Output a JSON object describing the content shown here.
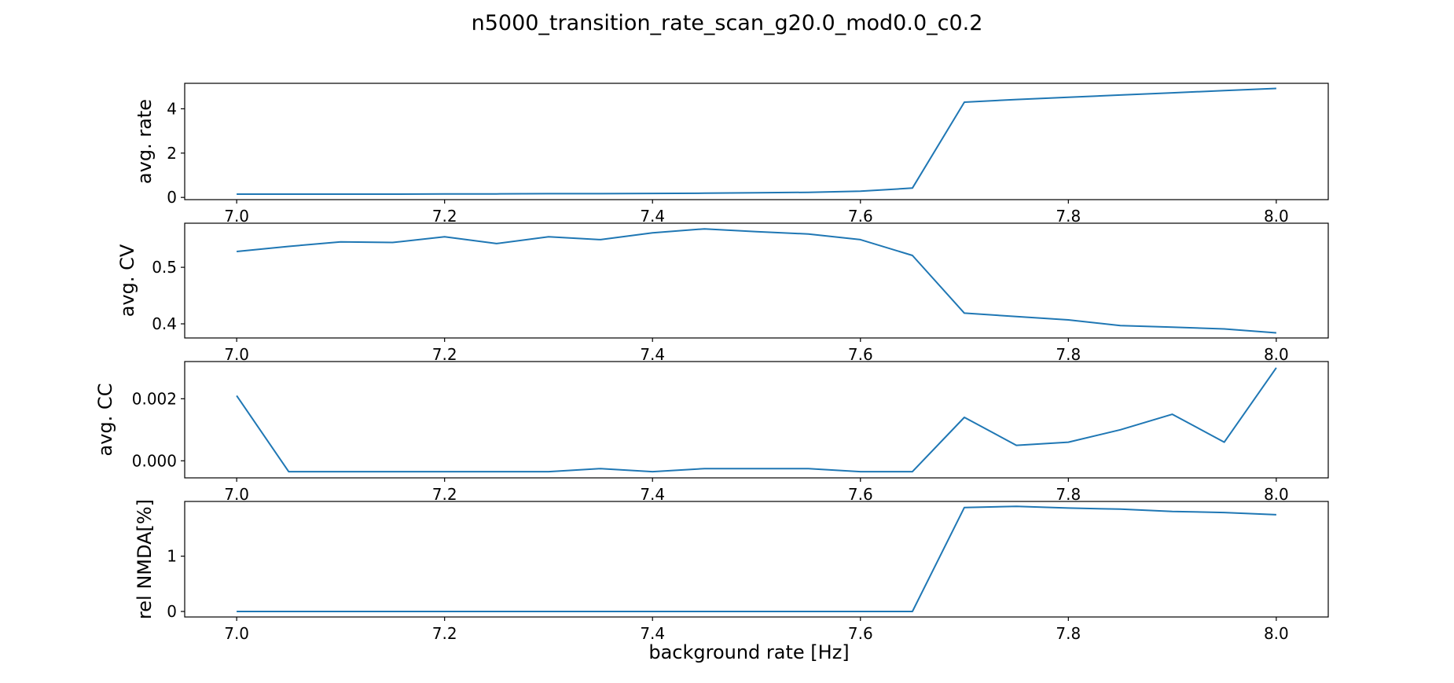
{
  "figure": {
    "title": "n5000_transition_rate_scan_g20.0_mod0.0_c0.2",
    "xlabel": "background rate [Hz]",
    "line_color": "#1f77b4"
  },
  "chart_data": [
    {
      "type": "line",
      "ylabel": "avg. rate",
      "x": [
        7.0,
        7.05,
        7.1,
        7.15,
        7.2,
        7.25,
        7.3,
        7.35,
        7.4,
        7.45,
        7.5,
        7.55,
        7.6,
        7.65,
        7.7,
        7.75,
        7.8,
        7.85,
        7.9,
        7.95,
        8.0
      ],
      "values": [
        0.15,
        0.15,
        0.15,
        0.15,
        0.16,
        0.16,
        0.17,
        0.17,
        0.18,
        0.19,
        0.21,
        0.23,
        0.28,
        0.42,
        4.3,
        4.42,
        4.52,
        4.62,
        4.72,
        4.82,
        4.92
      ],
      "xlim": [
        6.95,
        8.05
      ],
      "ylim": [
        -0.1,
        5.15
      ],
      "xticks": [
        7.0,
        7.2,
        7.4,
        7.6,
        7.8,
        8.0
      ],
      "xtick_labels": [
        "7.0",
        "7.2",
        "7.4",
        "7.6",
        "7.8",
        "8.0"
      ],
      "yticks": [
        0,
        2,
        4
      ],
      "ytick_labels": [
        "0",
        "2",
        "4"
      ]
    },
    {
      "type": "line",
      "ylabel": "avg. CV",
      "x": [
        7.0,
        7.05,
        7.1,
        7.15,
        7.2,
        7.25,
        7.3,
        7.35,
        7.4,
        7.45,
        7.5,
        7.55,
        7.6,
        7.65,
        7.7,
        7.75,
        7.8,
        7.85,
        7.9,
        7.95,
        8.0
      ],
      "values": [
        0.528,
        0.537,
        0.545,
        0.544,
        0.554,
        0.542,
        0.554,
        0.549,
        0.561,
        0.568,
        0.563,
        0.559,
        0.549,
        0.521,
        0.419,
        0.413,
        0.407,
        0.397,
        0.394,
        0.391,
        0.384
      ],
      "xlim": [
        6.95,
        8.05
      ],
      "ylim": [
        0.375,
        0.578
      ],
      "xticks": [
        7.0,
        7.2,
        7.4,
        7.6,
        7.8,
        8.0
      ],
      "xtick_labels": [
        "7.0",
        "7.2",
        "7.4",
        "7.6",
        "7.8",
        "8.0"
      ],
      "yticks": [
        0.4,
        0.5
      ],
      "ytick_labels": [
        "0.4",
        "0.5"
      ]
    },
    {
      "type": "line",
      "ylabel": "avg. CC",
      "x": [
        7.0,
        7.05,
        7.1,
        7.15,
        7.2,
        7.25,
        7.3,
        7.35,
        7.4,
        7.45,
        7.5,
        7.55,
        7.6,
        7.65,
        7.7,
        7.75,
        7.8,
        7.85,
        7.9,
        7.95,
        8.0
      ],
      "values": [
        0.0021,
        -0.00035,
        -0.00035,
        -0.00035,
        -0.00035,
        -0.00035,
        -0.00035,
        -0.00025,
        -0.00035,
        -0.00025,
        -0.00025,
        -0.00025,
        -0.00035,
        -0.00035,
        0.0014,
        0.0005,
        0.0006,
        0.001,
        0.0015,
        0.0006,
        0.003
      ],
      "xlim": [
        6.95,
        8.05
      ],
      "ylim": [
        -0.00055,
        0.0032
      ],
      "xticks": [
        7.0,
        7.2,
        7.4,
        7.6,
        7.8,
        8.0
      ],
      "xtick_labels": [
        "7.0",
        "7.2",
        "7.4",
        "7.6",
        "7.8",
        "8.0"
      ],
      "yticks": [
        0.0,
        0.002
      ],
      "ytick_labels": [
        "0.000",
        "0.002"
      ]
    },
    {
      "type": "line",
      "ylabel": "rel NMDA[%]",
      "x": [
        7.0,
        7.05,
        7.1,
        7.15,
        7.2,
        7.25,
        7.3,
        7.35,
        7.4,
        7.45,
        7.5,
        7.55,
        7.6,
        7.65,
        7.7,
        7.75,
        7.8,
        7.85,
        7.9,
        7.95,
        8.0
      ],
      "values": [
        0.0,
        0.0,
        0.0,
        0.0,
        0.0,
        0.0,
        0.0,
        0.0,
        0.0,
        0.0,
        0.0,
        0.0,
        0.0,
        0.0,
        1.88,
        1.9,
        1.87,
        1.85,
        1.81,
        1.79,
        1.75
      ],
      "xlim": [
        6.95,
        8.05
      ],
      "ylim": [
        -0.1,
        1.99
      ],
      "xticks": [
        7.0,
        7.2,
        7.4,
        7.6,
        7.8,
        8.0
      ],
      "xtick_labels": [
        "7.0",
        "7.2",
        "7.4",
        "7.6",
        "7.8",
        "8.0"
      ],
      "yticks": [
        0,
        1
      ],
      "ytick_labels": [
        "0",
        "1"
      ]
    }
  ]
}
